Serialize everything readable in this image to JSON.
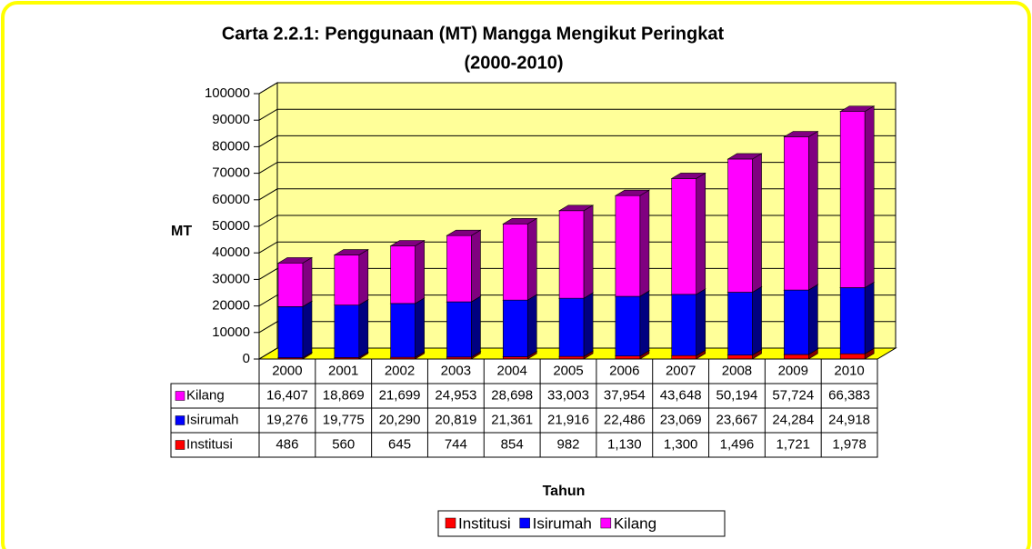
{
  "chart_data": {
    "type": "bar3d_stacked",
    "title": [
      "Carta 2.2.1: Penggunaan (MT) Mangga Mengikut Peringkat",
      "(2000-2010)"
    ],
    "y_label": "MT",
    "x_label": "Tahun",
    "categories": [
      "2000",
      "2001",
      "2002",
      "2003",
      "2004",
      "2005",
      "2006",
      "2007",
      "2008",
      "2009",
      "2010"
    ],
    "series": [
      {
        "name": "Institusi",
        "color": "#ff0000",
        "side_color": "#800000",
        "values": [
          486,
          560,
          645,
          744,
          854,
          982,
          1130,
          1300,
          1496,
          1721,
          1978
        ],
        "value_labels": [
          "486",
          "560",
          "645",
          "744",
          "854",
          "982",
          "1,130",
          "1,300",
          "1,496",
          "1,721",
          "1,978"
        ]
      },
      {
        "name": "Isirumah",
        "color": "#0000ff",
        "side_color": "#000080",
        "values": [
          19276,
          19775,
          20290,
          20819,
          21361,
          21916,
          22486,
          23069,
          23667,
          24284,
          24918
        ],
        "value_labels": [
          "19,276",
          "19,775",
          "20,290",
          "20,819",
          "21,361",
          "21,916",
          "22,486",
          "23,069",
          "23,667",
          "24,284",
          "24,918"
        ]
      },
      {
        "name": "Kilang",
        "color": "#ff00ff",
        "side_color": "#800080",
        "values": [
          16407,
          18869,
          21699,
          24953,
          28698,
          33003,
          37954,
          43648,
          50194,
          57724,
          66383
        ],
        "value_labels": [
          "16,407",
          "18,869",
          "21,699",
          "24,953",
          "28,698",
          "33,003",
          "37,954",
          "43,648",
          "50,194",
          "57,724",
          "66,383"
        ]
      }
    ],
    "ylim": [
      0,
      100000
    ],
    "yticks": [
      0,
      10000,
      20000,
      30000,
      40000,
      50000,
      60000,
      70000,
      80000,
      90000,
      100000
    ],
    "grid": true,
    "legend": "bottom",
    "wall_color": "#ffff99",
    "floor_color": "#ffff00"
  }
}
